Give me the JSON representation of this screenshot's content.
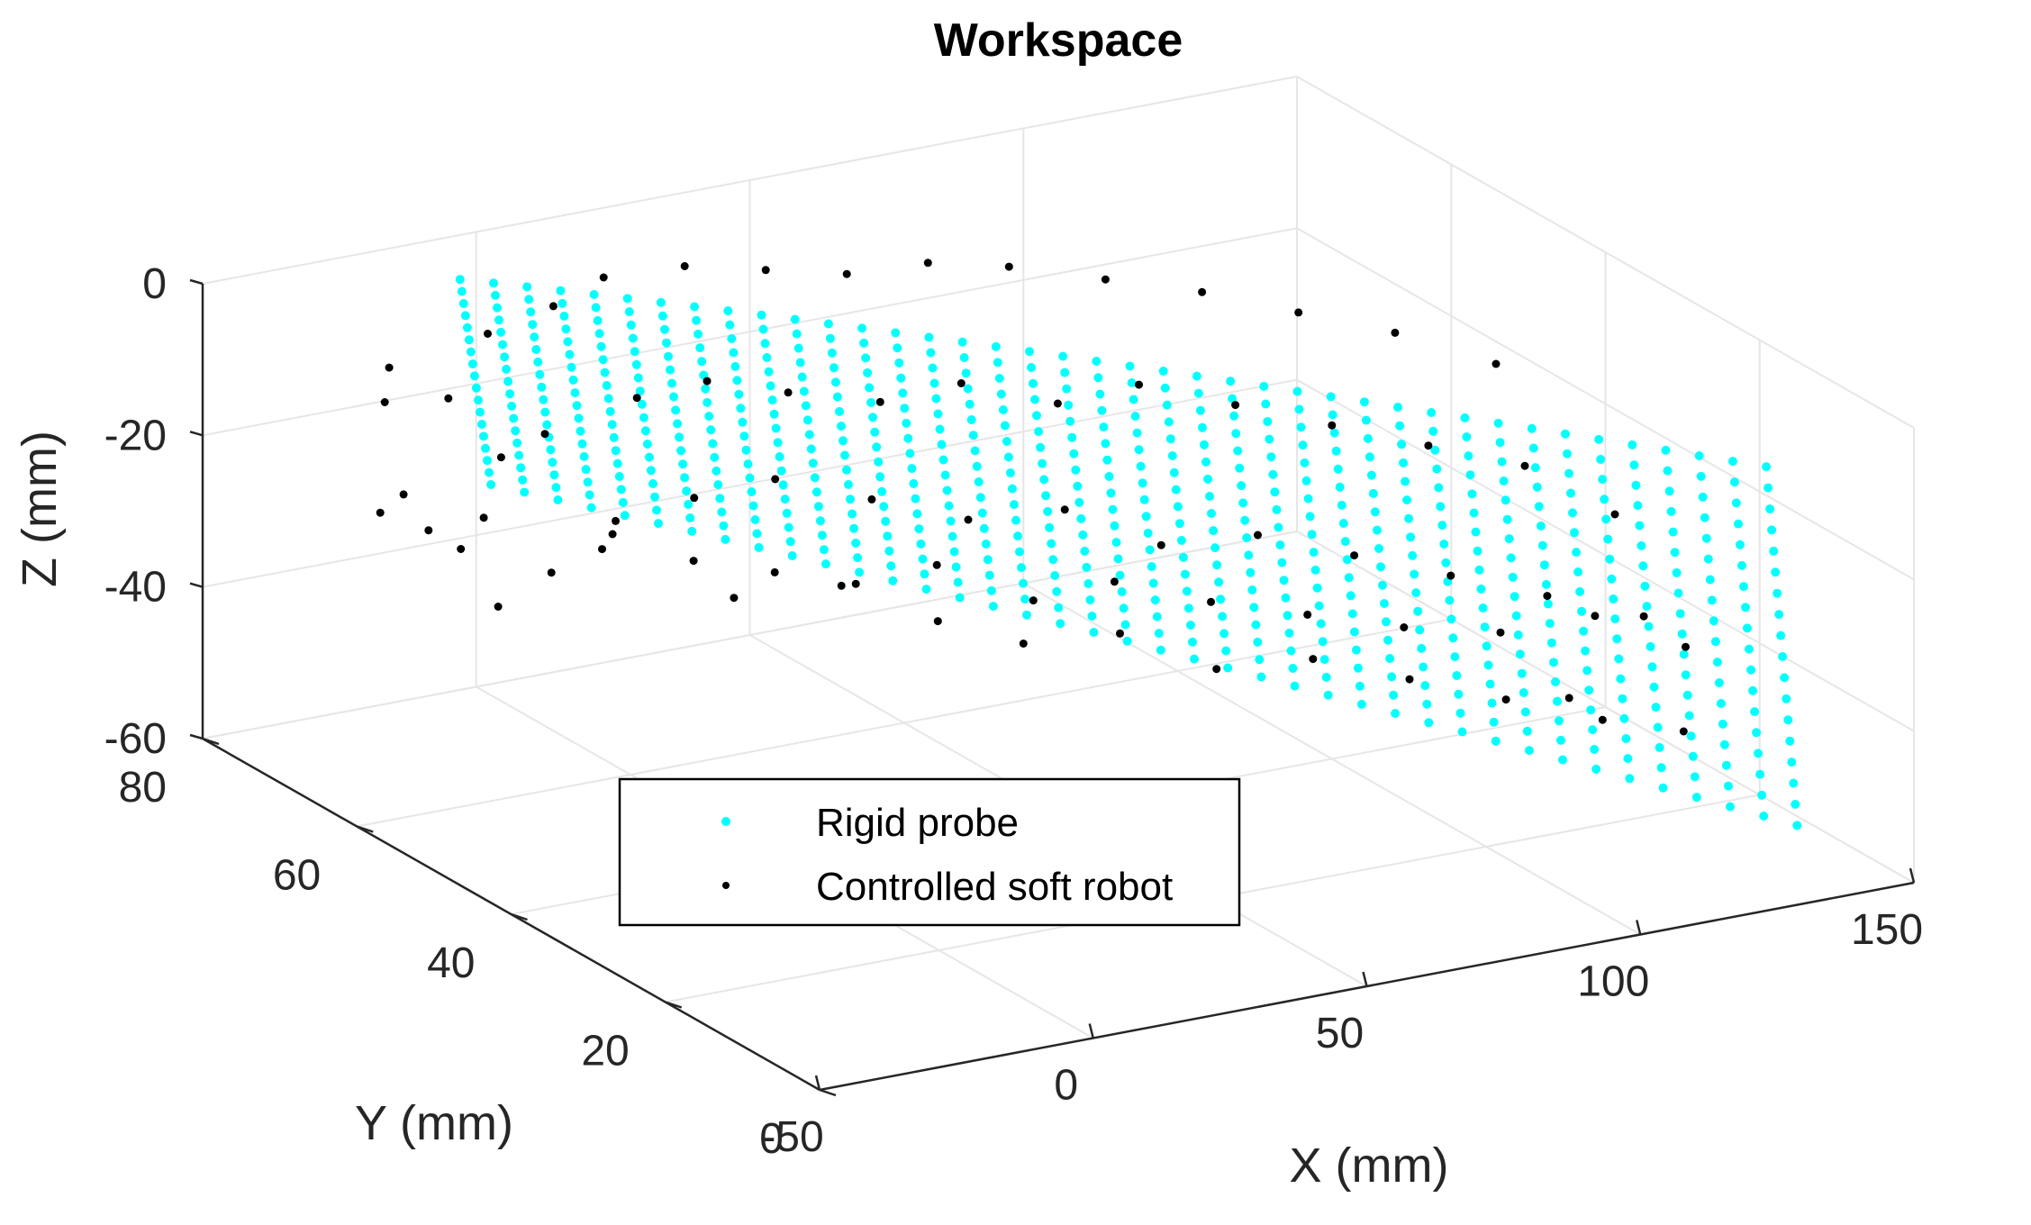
{
  "chart_data": {
    "type": "scatter",
    "title": "Workspace",
    "xlabel": "X (mm)",
    "ylabel": "Y (mm)",
    "zlabel": "Z (mm)",
    "xlim": [
      -50,
      150
    ],
    "ylim": [
      0,
      80
    ],
    "zlim": [
      -60,
      0
    ],
    "x_ticks": [
      "-50",
      "0",
      "50",
      "100",
      "150"
    ],
    "y_ticks": [
      "0",
      "20",
      "40",
      "60",
      "80"
    ],
    "z_ticks": [
      "0",
      "-20",
      "-40",
      "-60"
    ],
    "grid": true,
    "legend_position": "bottom-center",
    "series": [
      {
        "name": "Rigid probe",
        "color": "#00ffff",
        "marker": "dot",
        "surface": {
          "description_of_data_extent": "grid of probe positions over arc angle and radius",
          "x_range": [
            -10,
            135
          ],
          "y_range": [
            5,
            75
          ],
          "z_range": [
            -47,
            -2
          ]
        }
      },
      {
        "name": "Controlled soft robot",
        "color": "#000000",
        "marker": "dot",
        "points": [
          [
            -30,
            70,
            -8
          ],
          [
            -28,
            72,
            -14
          ],
          [
            -33,
            66,
            -22
          ],
          [
            -26,
            74,
            -30
          ],
          [
            -31,
            60,
            -26
          ],
          [
            -22,
            68,
            -12
          ],
          [
            -24,
            62,
            -24
          ],
          [
            -20,
            72,
            -32
          ],
          [
            -18,
            64,
            -18
          ],
          [
            -27,
            58,
            -33
          ],
          [
            -12,
            70,
            -6
          ],
          [
            -10,
            64,
            -16
          ],
          [
            -8,
            58,
            -28
          ],
          [
            -14,
            52,
            -20
          ],
          [
            -6,
            66,
            -36
          ],
          [
            0,
            70,
            -4
          ],
          [
            4,
            62,
            -12
          ],
          [
            6,
            56,
            -22
          ],
          [
            2,
            48,
            -30
          ],
          [
            8,
            68,
            -34
          ],
          [
            12,
            72,
            -3
          ],
          [
            14,
            60,
            -10
          ],
          [
            18,
            54,
            -20
          ],
          [
            16,
            44,
            -28
          ],
          [
            20,
            66,
            -38
          ],
          [
            24,
            70,
            -2
          ],
          [
            26,
            58,
            -12
          ],
          [
            30,
            50,
            -22
          ],
          [
            28,
            40,
            -32
          ],
          [
            32,
            64,
            -40
          ],
          [
            36,
            68,
            -3
          ],
          [
            40,
            56,
            -14
          ],
          [
            42,
            46,
            -24
          ],
          [
            38,
            36,
            -34
          ],
          [
            44,
            62,
            -42
          ],
          [
            48,
            66,
            -4
          ],
          [
            52,
            54,
            -12
          ],
          [
            54,
            42,
            -22
          ],
          [
            50,
            32,
            -32
          ],
          [
            56,
            60,
            -40
          ],
          [
            60,
            64,
            -3
          ],
          [
            64,
            50,
            -14
          ],
          [
            66,
            38,
            -26
          ],
          [
            62,
            28,
            -36
          ],
          [
            68,
            56,
            -44
          ],
          [
            72,
            62,
            -4
          ],
          [
            76,
            48,
            -12
          ],
          [
            78,
            34,
            -24
          ],
          [
            74,
            24,
            -34
          ],
          [
            80,
            54,
            -42
          ],
          [
            84,
            58,
            -5
          ],
          [
            88,
            44,
            -14
          ],
          [
            90,
            30,
            -26
          ],
          [
            86,
            20,
            -36
          ],
          [
            92,
            50,
            -44
          ],
          [
            96,
            54,
            -6
          ],
          [
            100,
            40,
            -16
          ],
          [
            102,
            26,
            -28
          ],
          [
            98,
            16,
            -38
          ],
          [
            104,
            46,
            -45
          ],
          [
            108,
            50,
            -8
          ],
          [
            112,
            36,
            -18
          ],
          [
            114,
            22,
            -30
          ],
          [
            110,
            12,
            -40
          ],
          [
            116,
            42,
            -46
          ],
          [
            120,
            46,
            -10
          ],
          [
            124,
            32,
            -20
          ],
          [
            126,
            18,
            -32
          ],
          [
            122,
            10,
            -42
          ],
          [
            128,
            38,
            -46
          ],
          [
            130,
            40,
            -12
          ],
          [
            132,
            26,
            -24
          ],
          [
            128,
            14,
            -34
          ],
          [
            134,
            30,
            -40
          ],
          [
            118,
            22,
            -44
          ]
        ]
      }
    ]
  }
}
